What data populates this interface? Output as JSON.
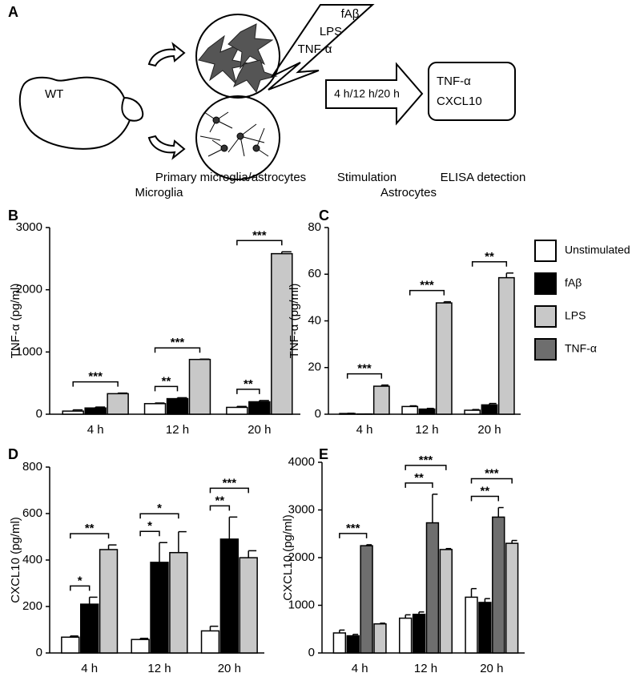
{
  "diagram": {
    "panel": "A",
    "brain_label": "WT",
    "stimuli": [
      "fAβ",
      "LPS",
      "TNF-α"
    ],
    "time_points": "4 h/12 h/20 h",
    "readouts": [
      "TNF-α",
      "CXCL10"
    ],
    "steps": [
      "Primary microglia/astrocytes",
      "Stimulation",
      "ELISA detection"
    ]
  },
  "legend": [
    {
      "name": "Unstimulated",
      "color": "#ffffff"
    },
    {
      "name": "fAβ",
      "color": "#000000"
    },
    {
      "name": "LPS",
      "color": "#c8c8c8"
    },
    {
      "name": "TNF-α",
      "color": "#6e6e6e"
    }
  ],
  "chart_data": [
    {
      "type": "bar",
      "panel": "B",
      "title": "Microglia",
      "y_label": "TNF-α (pg/ml)",
      "categories": [
        "4 h",
        "12 h",
        "20 h"
      ],
      "series": [
        {
          "name": "Unstimulated",
          "color": "#ffffff",
          "values": [
            50,
            170,
            110
          ],
          "errors": [
            20,
            10,
            15
          ]
        },
        {
          "name": "fAβ",
          "color": "#000000",
          "values": [
            100,
            250,
            200
          ],
          "errors": [
            15,
            15,
            20
          ]
        },
        {
          "name": "LPS",
          "color": "#c8c8c8",
          "values": [
            330,
            880,
            2580
          ],
          "errors": [
            10,
            5,
            30
          ]
        }
      ],
      "ylim": [
        0,
        3000
      ],
      "yticks": [
        0,
        1000,
        2000,
        3000
      ],
      "significance": [
        {
          "label": "***",
          "category": "4 h",
          "between": [
            "Unstimulated",
            "LPS"
          ]
        },
        {
          "label": "**",
          "category": "12 h",
          "between": [
            "Unstimulated",
            "fAβ"
          ]
        },
        {
          "label": "***",
          "category": "12 h",
          "between": [
            "Unstimulated",
            "LPS"
          ]
        },
        {
          "label": "**",
          "category": "20 h",
          "between": [
            "Unstimulated",
            "fAβ"
          ]
        },
        {
          "label": "***",
          "category": "20 h",
          "between": [
            "Unstimulated",
            "LPS"
          ]
        }
      ]
    },
    {
      "type": "bar",
      "panel": "C",
      "title": "Astrocytes",
      "y_label": "TNF-α (pg/ml)",
      "categories": [
        "4 h",
        "12 h",
        "20 h"
      ],
      "series": [
        {
          "name": "Unstimulated",
          "color": "#ffffff",
          "values": [
            0.3,
            3.3,
            1.7
          ],
          "errors": [
            0.1,
            0.3,
            0.3
          ]
        },
        {
          "name": "fAβ",
          "color": "#000000",
          "values": [
            0.1,
            2.2,
            4
          ],
          "errors": [
            0,
            0.3,
            0.6
          ]
        },
        {
          "name": "LPS",
          "color": "#c8c8c8",
          "values": [
            12,
            47.7,
            58.5
          ],
          "errors": [
            0.5,
            0.5,
            2
          ]
        }
      ],
      "ylim": [
        0,
        80
      ],
      "yticks": [
        0,
        20,
        40,
        60,
        80
      ],
      "significance": [
        {
          "label": "***",
          "category": "4 h",
          "between": [
            "Unstimulated",
            "LPS"
          ]
        },
        {
          "label": "***",
          "category": "12 h",
          "between": [
            "Unstimulated",
            "LPS"
          ]
        },
        {
          "label": "**",
          "category": "20 h",
          "between": [
            "Unstimulated",
            "LPS"
          ]
        }
      ]
    },
    {
      "type": "bar",
      "panel": "D",
      "y_label": "CXCL10 (pg/ml)",
      "categories": [
        "4 h",
        "12 h",
        "20 h"
      ],
      "series": [
        {
          "name": "Unstimulated",
          "color": "#ffffff",
          "values": [
            68,
            58,
            95
          ],
          "errors": [
            5,
            5,
            20
          ]
        },
        {
          "name": "fAβ",
          "color": "#000000",
          "values": [
            210,
            390,
            490
          ],
          "errors": [
            30,
            85,
            95
          ]
        },
        {
          "name": "LPS",
          "color": "#c8c8c8",
          "values": [
            445,
            432,
            410
          ],
          "errors": [
            20,
            90,
            30
          ]
        }
      ],
      "ylim": [
        0,
        800
      ],
      "yticks": [
        0,
        200,
        400,
        600,
        800
      ],
      "significance": [
        {
          "label": "*",
          "category": "4 h",
          "between": [
            "Unstimulated",
            "fAβ"
          ]
        },
        {
          "label": "**",
          "category": "4 h",
          "between": [
            "Unstimulated",
            "LPS"
          ]
        },
        {
          "label": "*",
          "category": "12 h",
          "between": [
            "Unstimulated",
            "fAβ"
          ]
        },
        {
          "label": "*",
          "category": "12 h",
          "between": [
            "Unstimulated",
            "LPS"
          ]
        },
        {
          "label": "**",
          "category": "20 h",
          "between": [
            "Unstimulated",
            "fAβ"
          ]
        },
        {
          "label": "***",
          "category": "20 h",
          "between": [
            "Unstimulated",
            "LPS"
          ]
        }
      ]
    },
    {
      "type": "bar",
      "panel": "E",
      "y_label": "CXCL10 (pg/ml)",
      "categories": [
        "4 h",
        "12 h",
        "20 h"
      ],
      "series": [
        {
          "name": "Unstimulated",
          "color": "#ffffff",
          "values": [
            420,
            730,
            1170
          ],
          "errors": [
            60,
            70,
            180
          ]
        },
        {
          "name": "fAβ",
          "color": "#000000",
          "values": [
            360,
            810,
            1060
          ],
          "errors": [
            30,
            50,
            80
          ]
        },
        {
          "name": "TNF-α",
          "color": "#6e6e6e",
          "values": [
            2250,
            2730,
            2850
          ],
          "errors": [
            20,
            600,
            200
          ]
        },
        {
          "name": "LPS",
          "color": "#c8c8c8",
          "values": [
            610,
            2170,
            2300
          ],
          "errors": [
            15,
            20,
            60
          ]
        }
      ],
      "ylim": [
        0,
        4000
      ],
      "yticks": [
        0,
        1000,
        2000,
        3000,
        4000
      ],
      "significance": [
        {
          "label": "***",
          "category": "4 h",
          "between": [
            "Unstimulated",
            "TNF-α"
          ]
        },
        {
          "label": "**",
          "category": "12 h",
          "between": [
            "Unstimulated",
            "TNF-α"
          ]
        },
        {
          "label": "***",
          "category": "12 h",
          "between": [
            "Unstimulated",
            "LPS"
          ]
        },
        {
          "label": "**",
          "category": "20 h",
          "between": [
            "Unstimulated",
            "TNF-α"
          ]
        },
        {
          "label": "***",
          "category": "20 h",
          "between": [
            "Unstimulated",
            "LPS"
          ]
        }
      ]
    }
  ]
}
